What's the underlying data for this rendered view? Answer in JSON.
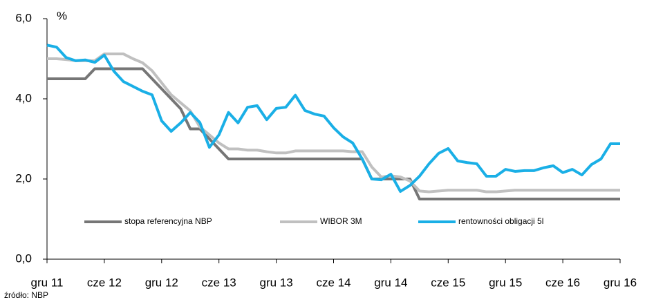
{
  "chart_data": {
    "type": "line",
    "y_label": "%",
    "source": "źródło:  NBP",
    "categories": [
      "gru 11",
      null,
      null,
      null,
      null,
      null,
      "cze 12",
      null,
      null,
      null,
      null,
      null,
      "gru 12",
      null,
      null,
      null,
      null,
      null,
      "cze 13",
      null,
      null,
      null,
      null,
      null,
      "gru 13",
      null,
      null,
      null,
      null,
      null,
      "cze 14",
      null,
      null,
      null,
      null,
      null,
      "gru 14",
      null,
      null,
      null,
      null,
      null,
      "cze 15",
      null,
      null,
      null,
      null,
      null,
      "gru 15",
      null,
      null,
      null,
      null,
      null,
      "cze 16",
      null,
      null,
      null,
      null,
      null,
      "gru 16"
    ],
    "series": [
      {
        "name": "stopa referencyjna NBP",
        "color": "#767676",
        "values": [
          4.5,
          4.5,
          4.5,
          4.5,
          4.5,
          4.75,
          4.75,
          4.75,
          4.75,
          4.75,
          4.75,
          4.5,
          4.25,
          4.0,
          3.75,
          3.25,
          3.25,
          3.0,
          2.75,
          2.5,
          2.5,
          2.5,
          2.5,
          2.5,
          2.5,
          2.5,
          2.5,
          2.5,
          2.5,
          2.5,
          2.5,
          2.5,
          2.5,
          2.5,
          2.0,
          2.0,
          2.0,
          2.0,
          2.0,
          1.5,
          1.5,
          1.5,
          1.5,
          1.5,
          1.5,
          1.5,
          1.5,
          1.5,
          1.5,
          1.5,
          1.5,
          1.5,
          1.5,
          1.5,
          1.5,
          1.5,
          1.5,
          1.5,
          1.5,
          1.5,
          1.5
        ]
      },
      {
        "name": "WIBOR 3M",
        "color": "#c0c0c0",
        "values": [
          5.0,
          5.0,
          4.98,
          4.95,
          4.95,
          4.95,
          5.12,
          5.12,
          5.12,
          5.0,
          4.9,
          4.7,
          4.4,
          4.1,
          3.9,
          3.7,
          3.3,
          3.1,
          2.9,
          2.75,
          2.75,
          2.72,
          2.72,
          2.68,
          2.65,
          2.65,
          2.7,
          2.7,
          2.7,
          2.7,
          2.7,
          2.7,
          2.68,
          2.68,
          2.3,
          2.05,
          2.08,
          2.05,
          1.95,
          1.7,
          1.68,
          1.7,
          1.72,
          1.72,
          1.72,
          1.72,
          1.68,
          1.68,
          1.7,
          1.72,
          1.72,
          1.72,
          1.72,
          1.72,
          1.72,
          1.72,
          1.72,
          1.72,
          1.72,
          1.72,
          1.72
        ]
      },
      {
        "name": "rentowności obligacji 5l",
        "color": "#1aafe6",
        "values": [
          5.34,
          5.29,
          5.03,
          4.95,
          4.97,
          4.91,
          5.09,
          4.69,
          4.43,
          4.31,
          4.19,
          4.1,
          3.45,
          3.19,
          3.4,
          3.66,
          3.41,
          2.79,
          3.1,
          3.66,
          3.4,
          3.79,
          3.83,
          3.48,
          3.76,
          3.79,
          4.09,
          3.71,
          3.62,
          3.57,
          3.28,
          3.05,
          2.9,
          2.5,
          2.0,
          1.98,
          2.12,
          1.69,
          1.84,
          2.07,
          2.38,
          2.64,
          2.76,
          2.45,
          2.41,
          2.38,
          2.07,
          2.07,
          2.24,
          2.19,
          2.21,
          2.21,
          2.28,
          2.33,
          2.16,
          2.24,
          2.1,
          2.36,
          2.5,
          2.88,
          2.88
        ]
      }
    ],
    "ylim": [
      0,
      6
    ],
    "yticks": [
      {
        "value": 0,
        "label": "0,0"
      },
      {
        "value": 2,
        "label": "2,0"
      },
      {
        "value": 4,
        "label": "4,0"
      },
      {
        "value": 6,
        "label": "6,0"
      }
    ],
    "legend": "inside-bottom"
  }
}
